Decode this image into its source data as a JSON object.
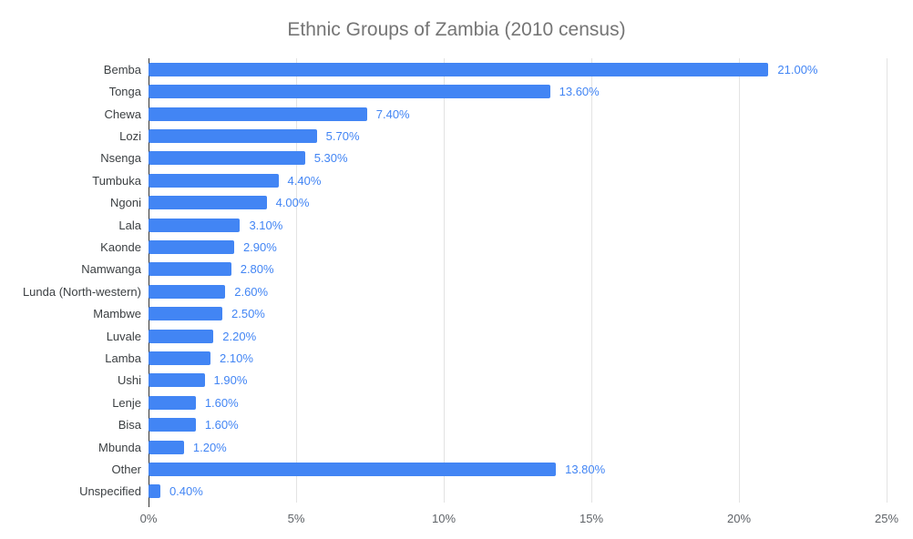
{
  "title": "Ethnic Groups of Zambia (2010 census)",
  "chart_data": {
    "type": "bar",
    "orientation": "horizontal",
    "title": "Ethnic Groups of Zambia (2010 census)",
    "xlabel": "",
    "ylabel": "",
    "xlim": [
      0,
      25
    ],
    "grid": true,
    "legend": "none",
    "categories": [
      "Bemba",
      "Tonga",
      "Chewa",
      "Lozi",
      "Nsenga",
      "Tumbuka",
      "Ngoni",
      "Lala",
      "Kaonde",
      "Namwanga",
      "Lunda (North-western)",
      "Mambwe",
      "Luvale",
      "Lamba",
      "Ushi",
      "Lenje",
      "Bisa",
      "Mbunda",
      "Other",
      "Unspecified"
    ],
    "values": [
      21.0,
      13.6,
      7.4,
      5.7,
      5.3,
      4.4,
      4.0,
      3.1,
      2.9,
      2.8,
      2.6,
      2.5,
      2.2,
      2.1,
      1.9,
      1.6,
      1.6,
      1.2,
      13.8,
      0.4
    ],
    "value_labels": [
      "21.00%",
      "13.60%",
      "7.40%",
      "5.70%",
      "5.30%",
      "4.40%",
      "4.00%",
      "3.10%",
      "2.90%",
      "2.80%",
      "2.60%",
      "2.50%",
      "2.20%",
      "2.10%",
      "1.90%",
      "1.60%",
      "1.60%",
      "1.20%",
      "13.80%",
      "0.40%"
    ],
    "x_ticks": [
      "0%",
      "5%",
      "10%",
      "15%",
      "20%",
      "25%"
    ]
  },
  "colors": {
    "background": "#ffffff",
    "bar": "#4285f4",
    "annotation": "#4285f4",
    "title": "#757575",
    "category_label": "#3c4043",
    "tick_label": "#5f6368",
    "gridline": "#e3e3e3",
    "baseline": "#333333"
  }
}
